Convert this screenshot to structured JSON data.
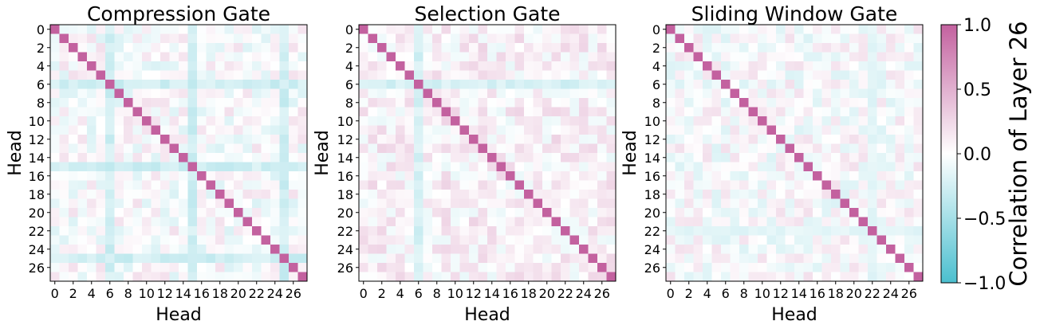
{
  "chart_data": [
    {
      "type": "heatmap",
      "title": "Compression Gate",
      "xlabel": "Head",
      "ylabel": "Head",
      "size": 28,
      "x_ticks": [
        "0",
        "2",
        "4",
        "6",
        "8",
        "10",
        "12",
        "14",
        "16",
        "18",
        "20",
        "22",
        "24",
        "26"
      ],
      "y_ticks": [
        "0",
        "2",
        "4",
        "6",
        "8",
        "10",
        "12",
        "14",
        "16",
        "18",
        "20",
        "22",
        "24",
        "26"
      ],
      "diagonal": 1.0,
      "note_values": "off-diagonal correlations approx. in [-0.4, 0.3]; head 6 strongly negative (~-0.35)",
      "negative_heads": [
        6,
        15,
        25
      ],
      "negative_strength": 0.35,
      "seed": 11
    },
    {
      "type": "heatmap",
      "title": "Selection Gate",
      "xlabel": "Head",
      "ylabel": "Head",
      "size": 28,
      "x_ticks": [
        "0",
        "2",
        "4",
        "6",
        "8",
        "10",
        "12",
        "14",
        "16",
        "18",
        "20",
        "22",
        "24",
        "26"
      ],
      "y_ticks": [
        "0",
        "2",
        "4",
        "6",
        "8",
        "10",
        "12",
        "14",
        "16",
        "18",
        "20",
        "22",
        "24",
        "26"
      ],
      "diagonal": 1.0,
      "note_values": "off-diagonal mostly slightly positive (~0.1-0.2); head 6 negative (~-0.3)",
      "negative_heads": [
        6
      ],
      "negative_strength": 0.3,
      "seed": 23
    },
    {
      "type": "heatmap",
      "title": "Sliding Window Gate",
      "xlabel": "Head",
      "ylabel": "Head",
      "size": 28,
      "x_ticks": [
        "0",
        "2",
        "4",
        "6",
        "8",
        "10",
        "12",
        "14",
        "16",
        "18",
        "20",
        "22",
        "24",
        "26"
      ],
      "y_ticks": [
        "0",
        "2",
        "4",
        "6",
        "8",
        "10",
        "12",
        "14",
        "16",
        "18",
        "20",
        "22",
        "24",
        "26"
      ],
      "diagonal": 1.0,
      "note_values": "off-diagonal weak (~-0.2 to 0.2); head 22 mildly negative",
      "negative_heads": [
        22
      ],
      "negative_strength": 0.2,
      "seed": 37
    }
  ],
  "colorbar": {
    "label": "Correlation of Layer 26",
    "vmin": -1.0,
    "vmax": 1.0,
    "ticks": [
      "−1.0",
      "−0.5",
      "0.0",
      "0.5",
      "1.0"
    ],
    "tick_values": [
      -1.0,
      -0.5,
      0.0,
      0.5,
      1.0
    ],
    "color_negative": "#4bbfcf",
    "color_zero": "#ffffff",
    "color_positive": "#c3619f"
  }
}
